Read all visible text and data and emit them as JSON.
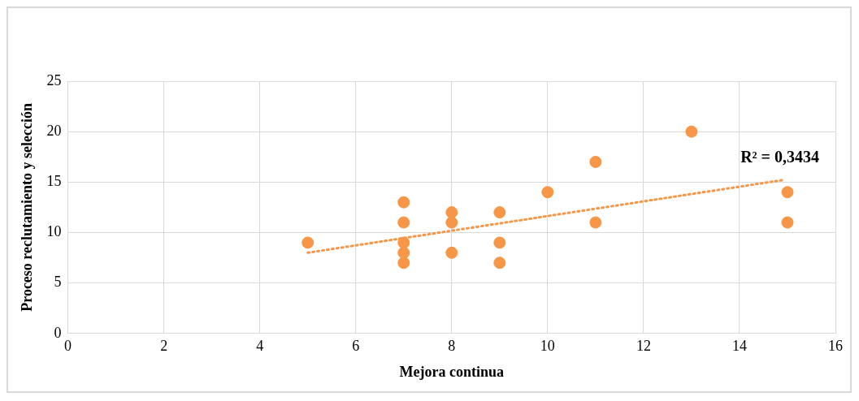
{
  "chart_data": {
    "type": "scatter",
    "xlabel": "Mejora continua",
    "ylabel": "Proceso reclutamiento y selección",
    "x": [
      5,
      7,
      7,
      7,
      7,
      7,
      8,
      8,
      8,
      9,
      9,
      9,
      10,
      11,
      11,
      13,
      15,
      15
    ],
    "series": [
      {
        "type": "scatter",
        "marker": "circle",
        "color": "#f79646",
        "values": [
          9,
          13,
          11,
          9,
          8,
          7,
          12,
          11,
          8,
          12,
          9,
          7,
          14,
          17,
          11,
          20,
          14,
          11
        ]
      },
      {
        "type": "line",
        "color": "#f79646",
        "line_style": "dotted",
        "x": [
          5,
          14.9
        ],
        "values": [
          8,
          15.2
        ]
      }
    ],
    "annotations": [
      "R² = 0,3434"
    ],
    "xlim": [
      0,
      16
    ],
    "xticks": [
      0,
      2,
      4,
      6,
      8,
      10,
      12,
      14,
      16
    ],
    "ylim": [
      0,
      25
    ],
    "yticks": [
      0,
      5,
      10,
      15,
      20,
      25
    ],
    "grid": true,
    "legend": false
  }
}
